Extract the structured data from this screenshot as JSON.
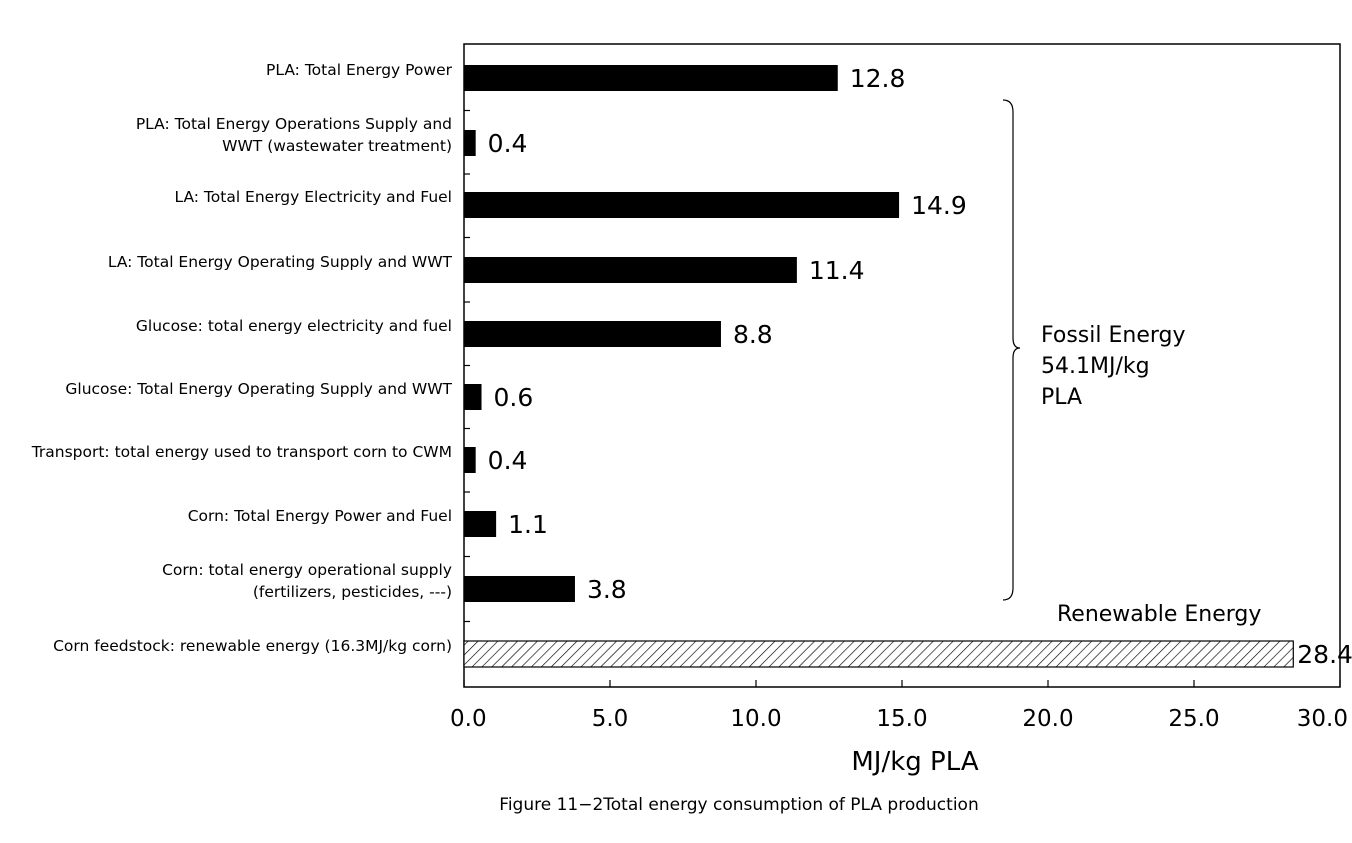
{
  "chart_data": {
    "type": "bar",
    "orientation": "horizontal",
    "categories": [
      [
        "PLA: Total Energy Power"
      ],
      [
        "PLA: Total Energy Operations Supply and",
        "WWT (wastewater treatment)"
      ],
      [
        "LA: Total Energy Electricity and Fuel"
      ],
      [
        "LA: Total Energy Operating Supply and WWT"
      ],
      [
        "Glucose: total energy electricity and fuel"
      ],
      [
        "Glucose: Total Energy Operating Supply and WWT"
      ],
      [
        "Transport: total energy used to transport corn to CWM"
      ],
      [
        "Corn: Total Energy Power and Fuel"
      ],
      [
        "Corn: total energy operational supply",
        "(fertilizers, pesticides, ---)"
      ],
      [
        "Corn feedstock: renewable energy (16.3MJ/kg corn)"
      ]
    ],
    "values": [
      12.8,
      0.4,
      14.9,
      11.4,
      8.8,
      0.6,
      0.4,
      1.1,
      3.8,
      28.4
    ],
    "value_labels": [
      "12.8",
      "0.4",
      "14.9",
      "11.4",
      "8.8",
      "0.6",
      "0.4",
      "1.1",
      "3.8",
      "28.4"
    ],
    "bar_styles": [
      "solid",
      "solid",
      "solid",
      "solid",
      "solid",
      "solid",
      "solid",
      "solid",
      "solid",
      "hatched"
    ],
    "xlabel": "MJ/kg PLA",
    "xlim": [
      0,
      30
    ],
    "xticks": [
      "0.0",
      "5.0",
      "10.0",
      "15.0",
      "20.0",
      "25.0",
      "30.0"
    ],
    "annotations": {
      "fossil": [
        "Fossil Energy",
        "54.1MJ/kg",
        "PLA"
      ],
      "renewable": "Renewable Energy"
    },
    "grid": false,
    "colors": {
      "bar": "#000000",
      "hatch": "#000000"
    }
  },
  "caption": "Figure 11−2Total energy consumption of PLA production"
}
